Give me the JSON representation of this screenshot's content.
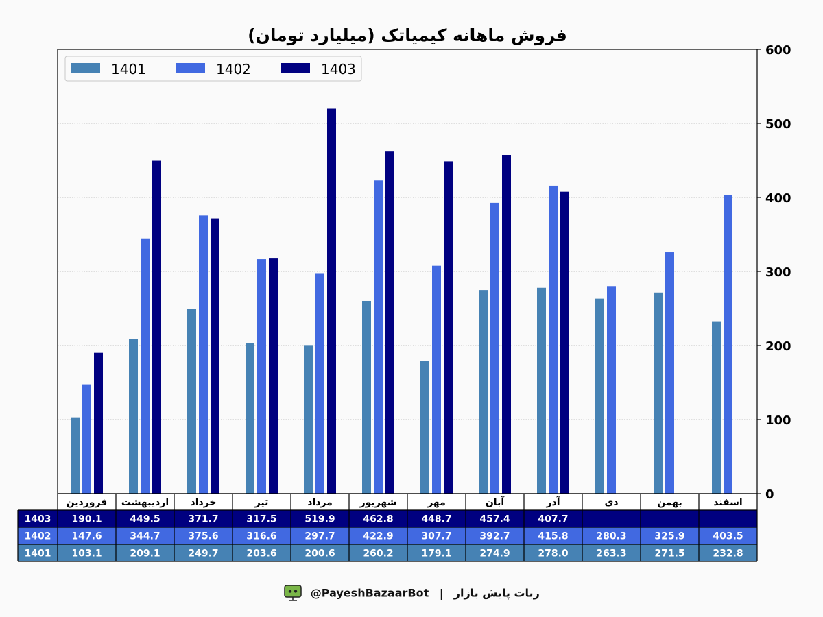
{
  "chart_data": {
    "type": "bar",
    "title": "فروش ماهانه کیمیاتک (میلیارد تومان)",
    "categories": [
      "فروردین",
      "اردیبهشت",
      "خرداد",
      "تیر",
      "مرداد",
      "شهریور",
      "مهر",
      "آبان",
      "آذر",
      "دی",
      "بهمن",
      "اسفند"
    ],
    "series": [
      {
        "name": "1401",
        "color": "#4682b4",
        "values": [
          103.1,
          209.1,
          249.7,
          203.6,
          200.6,
          260.2,
          179.1,
          274.9,
          278.0,
          263.3,
          271.5,
          232.8
        ]
      },
      {
        "name": "1402",
        "color": "#4169e1",
        "values": [
          147.6,
          344.7,
          375.6,
          316.6,
          297.7,
          422.9,
          307.7,
          392.7,
          415.8,
          280.3,
          325.9,
          403.5
        ]
      },
      {
        "name": "1403",
        "color": "#000080",
        "values": [
          190.1,
          449.5,
          371.7,
          317.5,
          519.9,
          462.8,
          448.7,
          457.4,
          407.7,
          null,
          null,
          null
        ]
      }
    ],
    "ylim": [
      0,
      600
    ],
    "yticks": [
      0,
      100,
      200,
      300,
      400,
      500,
      600
    ],
    "grid": "y-dotted",
    "legend": "top-left",
    "yaxis_side": "right",
    "table": {
      "row_order": [
        "1403",
        "1402",
        "1401"
      ]
    }
  },
  "footer": {
    "handle": "@PayeshBazaarBot",
    "separator": "|",
    "bot_name": "ربات پایش بازار",
    "icon": "robot-icon"
  }
}
